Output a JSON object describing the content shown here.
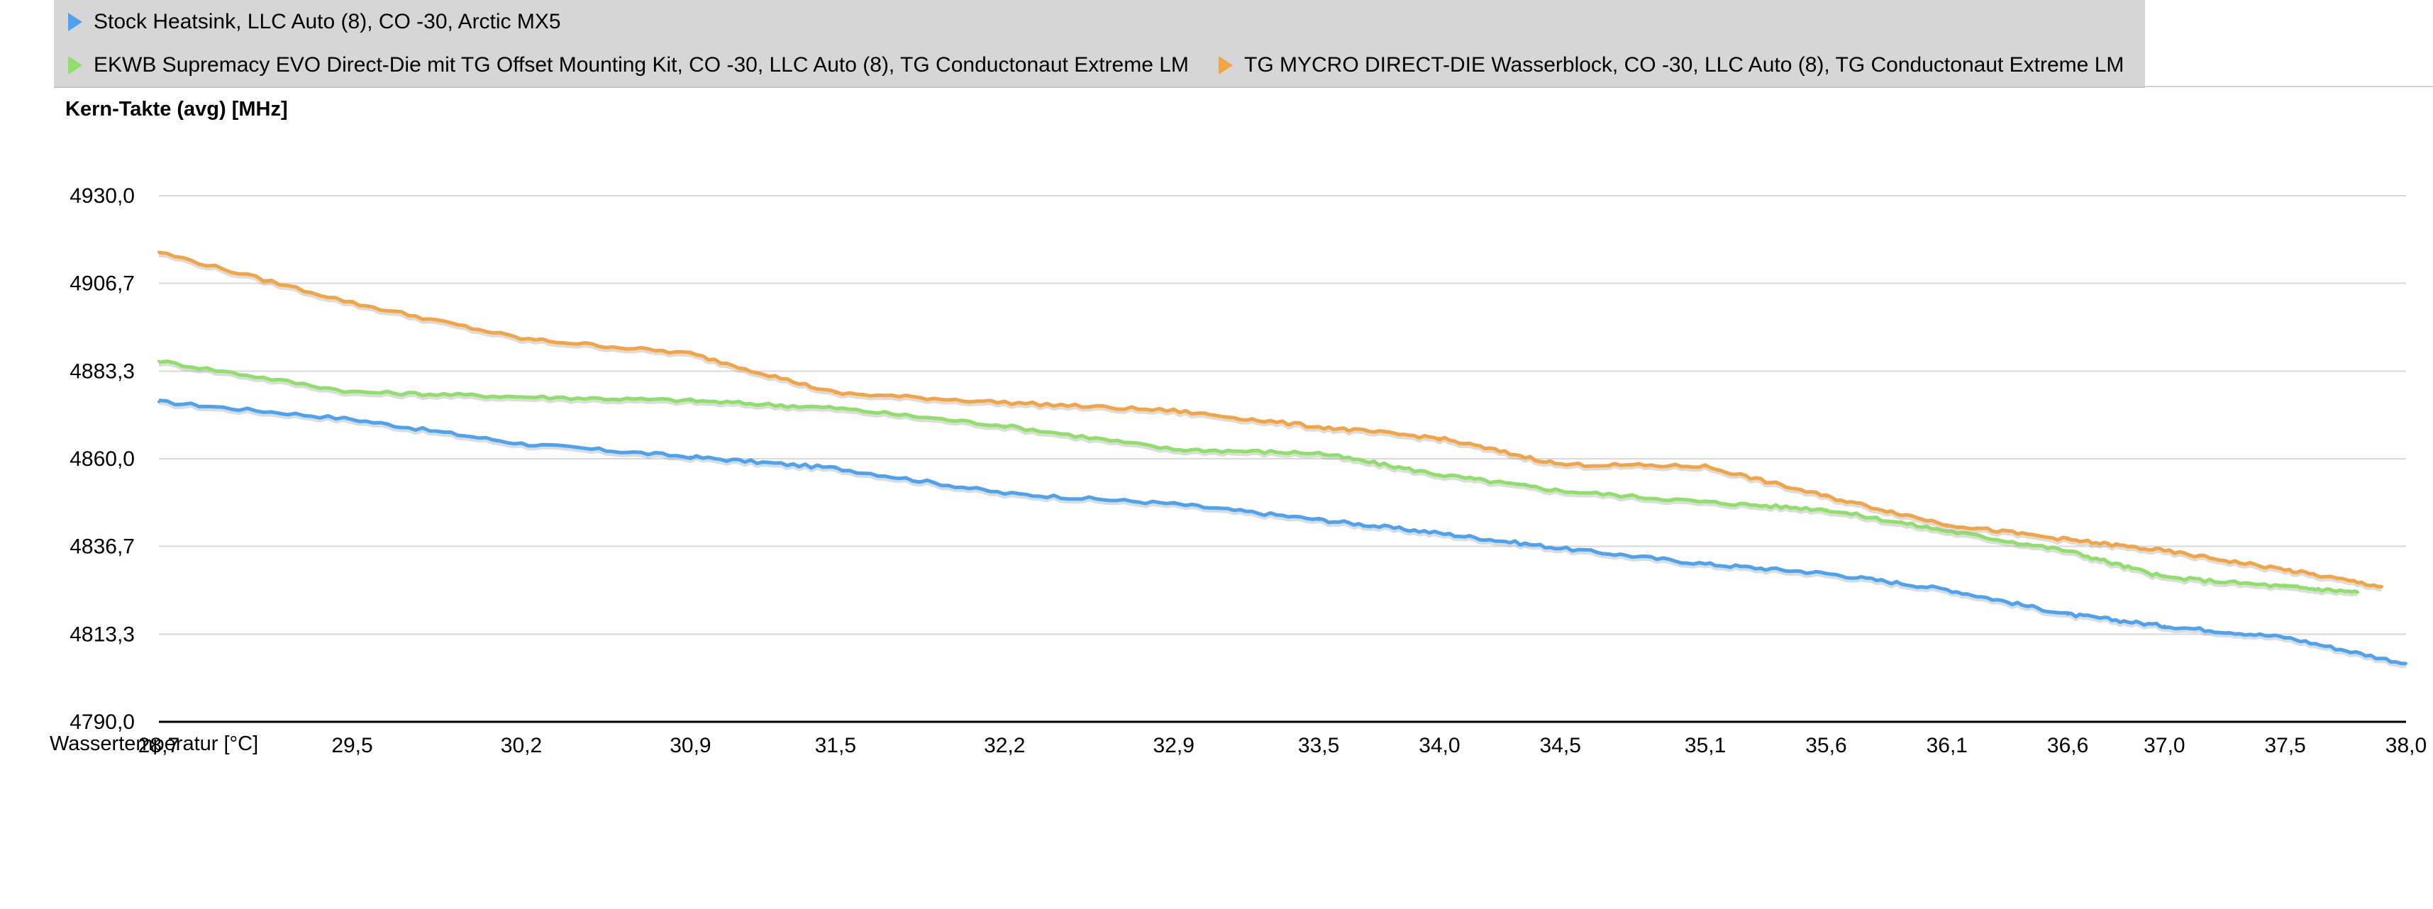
{
  "legend": [
    {
      "label": "Stock Heatsink, LLC Auto (8), CO -30, Arctic MX5",
      "color": "#4da3f0"
    },
    {
      "label": "EKWB Supremacy EVO Direct-Die mit TG Offset Mounting Kit, CO -30, LLC Auto (8), TG Conductonaut Extreme LM",
      "color": "#8fe06a"
    },
    {
      "label": "TG MYCRO DIRECT-DIE Wasserblock, CO -30, LLC Auto (8), TG Conductonaut Extreme LM",
      "color": "#f3a445"
    }
  ],
  "chart_data": {
    "type": "line",
    "title": "Kern-Takte (avg) [MHz]",
    "xlabel": "Wassertemperatur [°C]",
    "ylabel": "",
    "ylim": [
      4790.0,
      4930.0
    ],
    "yticks": [
      "4930,0",
      "4906,7",
      "4883,3",
      "4860,0",
      "4836,7",
      "4813,3",
      "4790,0"
    ],
    "xticks": [
      "28,7",
      "29,5",
      "30,2",
      "30,9",
      "31,5",
      "32,2",
      "32,9",
      "33,5",
      "34,0",
      "34,5",
      "35,1",
      "35,6",
      "36,1",
      "36,6",
      "37,0",
      "37,5",
      "38,0"
    ],
    "grid": true,
    "legend_position": "top",
    "series": [
      {
        "name": "Stock Heatsink, LLC Auto (8), CO -30, Arctic MX5",
        "color": "#4da3f0",
        "x": [
          28.7,
          29.5,
          30.2,
          30.9,
          31.5,
          32.2,
          32.9,
          33.5,
          34.0,
          34.5,
          35.1,
          35.6,
          36.1,
          36.6,
          37.0,
          37.5,
          38.0
        ],
        "y": [
          4875.2,
          4870.5,
          4864.0,
          4860.5,
          4857.5,
          4850.8,
          4848.0,
          4843.8,
          4840.2,
          4836.2,
          4832.0,
          4829.5,
          4825.2,
          4818.6,
          4815.5,
          4812.5,
          4805.5
        ]
      },
      {
        "name": "EKWB Supremacy EVO Direct-Die mit TG Offset Mounting Kit, CO -30, LLC Auto (8), TG Conductonaut Extreme LM",
        "color": "#8fe06a",
        "x": [
          28.7,
          29.5,
          30.2,
          30.9,
          31.5,
          32.2,
          32.9,
          33.5,
          34.0,
          34.5,
          35.1,
          35.6,
          36.1,
          36.6,
          37.0,
          37.5,
          37.8
        ],
        "y": [
          4886.0,
          4877.8,
          4876.5,
          4875.5,
          4873.5,
          4868.8,
          4862.5,
          4861.5,
          4855.8,
          4851.5,
          4848.5,
          4846.5,
          4840.8,
          4835.5,
          4828.5,
          4826.0,
          4824.5
        ]
      },
      {
        "name": "TG MYCRO DIRECT-DIE Wasserblock, CO -30, LLC Auto (8), TG Conductonaut Extreme LM",
        "color": "#f3a445",
        "x": [
          28.7,
          29.5,
          30.2,
          30.9,
          31.5,
          32.2,
          32.9,
          33.5,
          34.0,
          34.5,
          35.1,
          35.6,
          36.1,
          36.6,
          37.0,
          37.5,
          37.9
        ],
        "y": [
          4915.0,
          4901.5,
          4892.0,
          4888.0,
          4877.5,
          4875.0,
          4872.8,
          4868.5,
          4865.5,
          4858.5,
          4858.0,
          4850.0,
          4842.5,
          4838.5,
          4835.5,
          4830.5,
          4826.0
        ]
      }
    ]
  }
}
